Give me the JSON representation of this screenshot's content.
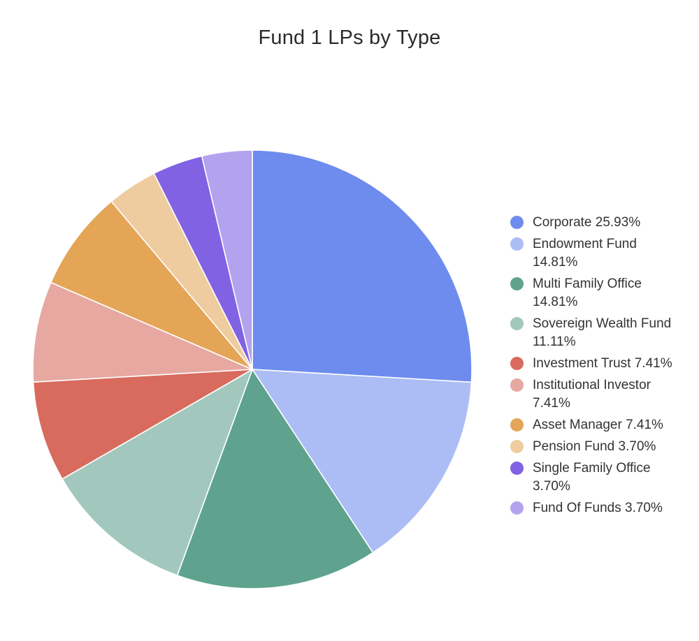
{
  "chart_data": {
    "type": "pie",
    "title": "Fund 1 LPs by Type",
    "slices": [
      {
        "label": "Corporate",
        "value": 25.93,
        "display": "Corporate 25.93%",
        "color": "#6e8cee"
      },
      {
        "label": "Endowment Fund",
        "value": 14.81,
        "display": "Endowment Fund 14.81%",
        "color": "#acbdf5"
      },
      {
        "label": "Multi Family Office",
        "value": 14.81,
        "display": "Multi Family Office 14.81%",
        "color": "#5fa38f"
      },
      {
        "label": "Sovereign Wealth Fund",
        "value": 11.11,
        "display": "Sovereign Wealth Fund 11.11%",
        "color": "#a2c8bd"
      },
      {
        "label": "Investment Trust",
        "value": 7.41,
        "display": "Investment Trust 7.41%",
        "color": "#d86b5e"
      },
      {
        "label": "Institutional Investor",
        "value": 7.41,
        "display": "Institutional Investor 7.41%",
        "color": "#e6a8a1"
      },
      {
        "label": "Asset Manager",
        "value": 7.41,
        "display": "Asset Manager 7.41%",
        "color": "#e4a557"
      },
      {
        "label": "Pension Fund",
        "value": 3.7,
        "display": "Pension Fund 3.70%",
        "color": "#eecc9f"
      },
      {
        "label": "Single Family Office",
        "value": 3.7,
        "display": "Single Family Office 3.70%",
        "color": "#8162e3"
      },
      {
        "label": "Fund Of Funds",
        "value": 3.7,
        "display": "Fund Of Funds 3.70%",
        "color": "#b3a3ef"
      }
    ],
    "legend_position": "right",
    "start_angle": "12 o'clock, clockwise"
  }
}
